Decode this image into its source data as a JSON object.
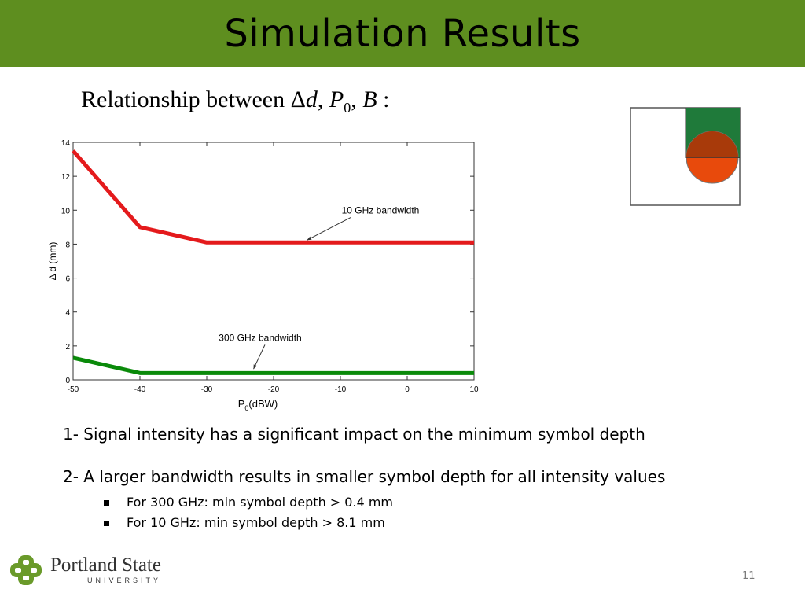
{
  "slide": {
    "title": "Simulation Results",
    "relationship": {
      "prefix": "Relationship between ",
      "delta": "Δ",
      "d": "d",
      "p": "P",
      "p_sub": "0",
      "b": "B",
      "suffix": " :"
    },
    "bullets": [
      "1- Signal intensity has a significant impact on the minimum symbol depth",
      "2- A larger bandwidth results in smaller symbol depth for all intensity values"
    ],
    "sub_bullets": [
      "For 300 GHz: min symbol depth > 0.4 mm",
      "For 10 GHz: min symbol depth > 8.1 mm"
    ],
    "page_number": "11",
    "logo": {
      "name": "Portland State",
      "subtitle": "UNIVERSITY"
    }
  },
  "diagram": {
    "square_fill": "#ffffff",
    "bar_fill": "#1f7a3a",
    "circle_fill": "#e84a0c",
    "overlap_fill": "#a83a0a"
  },
  "chart_data": {
    "type": "line",
    "xlabel": "P",
    "xlabel_sub": "0",
    "xlabel_suffix": "(dBW)",
    "ylabel": "Δ d (mm)",
    "xlim": [
      -50,
      10
    ],
    "ylim": [
      0,
      14
    ],
    "xticks": [
      -50,
      -40,
      -30,
      -20,
      -10,
      0,
      10
    ],
    "yticks": [
      0,
      2,
      4,
      6,
      8,
      10,
      12,
      14
    ],
    "grid": false,
    "series": [
      {
        "name": "10 GHz bandwidth",
        "color": "#e41a1c",
        "x": [
          -50,
          -40,
          -30,
          -20,
          -10,
          0,
          10
        ],
        "y": [
          13.5,
          9.0,
          8.1,
          8.1,
          8.1,
          8.1,
          8.1
        ]
      },
      {
        "name": "300 GHz bandwidth",
        "color": "#0a8a0a",
        "x": [
          -50,
          -40,
          -30,
          -20,
          -10,
          0,
          10
        ],
        "y": [
          1.3,
          0.4,
          0.4,
          0.4,
          0.4,
          0.4,
          0.4
        ]
      }
    ],
    "annotations": [
      {
        "text": "10 GHz bandwidth",
        "text_x": -4,
        "text_y": 9.8,
        "arrow_x": -15,
        "arrow_y": 8.1
      },
      {
        "text": "300 GHz bandwidth",
        "text_x": -22,
        "text_y": 2.3,
        "arrow_x": -23,
        "arrow_y": 0.5
      }
    ]
  }
}
